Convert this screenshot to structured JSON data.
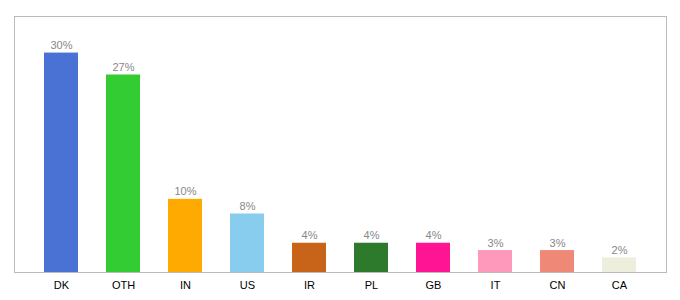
{
  "chart_data": {
    "type": "bar",
    "categories": [
      "DK",
      "OTH",
      "IN",
      "US",
      "IR",
      "PL",
      "GB",
      "IT",
      "CN",
      "CA"
    ],
    "values": [
      30,
      27,
      10,
      8,
      4,
      4,
      4,
      3,
      3,
      2
    ],
    "value_labels": [
      "30%",
      "27%",
      "10%",
      "8%",
      "4%",
      "4%",
      "4%",
      "3%",
      "3%",
      "2%"
    ],
    "colors": [
      "#4a72d4",
      "#33cc33",
      "#ffaa00",
      "#88ccee",
      "#c8641a",
      "#2d7a2d",
      "#ff1493",
      "#ff99bb",
      "#f08878",
      "#eeeedd"
    ],
    "ylim": [
      0,
      35
    ],
    "data_labels": true,
    "grid": false,
    "tick_labels": "x"
  }
}
